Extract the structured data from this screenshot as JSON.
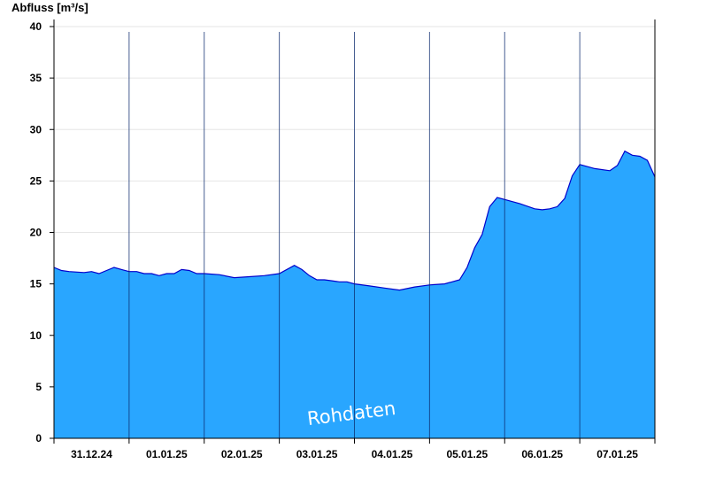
{
  "chart_data": {
    "type": "area",
    "ylabel": "Abfluss [m³/s]",
    "ylim": [
      0,
      40
    ],
    "yticks": [
      0,
      5,
      10,
      15,
      20,
      25,
      30,
      35,
      40
    ],
    "grid": true,
    "x_categories": [
      "31.12.24",
      "01.01.25",
      "02.01.25",
      "03.01.25",
      "04.01.25",
      "05.01.25",
      "06.01.25",
      "07.01.25"
    ],
    "x_range_days": [
      0,
      8
    ],
    "watermark": "Rohdaten",
    "colors": {
      "fill": "#29a6ff",
      "line": "#0000cc"
    },
    "series": [
      {
        "x": [
          0,
          0.1,
          0.2,
          0.4,
          0.5,
          0.6,
          0.7,
          0.8,
          0.9,
          1.0,
          1.1,
          1.2,
          1.3,
          1.4,
          1.5,
          1.6,
          1.7,
          1.8,
          1.9,
          2.0,
          2.2,
          2.4,
          2.6,
          2.8,
          3.0,
          3.2,
          3.3,
          3.4,
          3.5,
          3.6,
          3.7,
          3.8,
          3.9,
          4.0,
          4.2,
          4.4,
          4.6,
          4.8,
          5.0,
          5.2,
          5.4,
          5.5,
          5.6,
          5.7,
          5.8,
          5.9,
          6.0,
          6.2,
          6.4,
          6.5,
          6.6,
          6.7,
          6.8,
          6.9,
          7.0,
          7.2,
          7.4,
          7.5,
          7.6,
          7.7,
          7.8,
          7.9,
          8.0
        ],
        "y": [
          16.6,
          16.3,
          16.2,
          16.1,
          16.2,
          16.0,
          16.3,
          16.6,
          16.4,
          16.2,
          16.2,
          16.0,
          16.0,
          15.8,
          16.0,
          16.0,
          16.4,
          16.3,
          16.0,
          16.0,
          15.9,
          15.6,
          15.7,
          15.8,
          16.0,
          16.8,
          16.4,
          15.8,
          15.4,
          15.4,
          15.3,
          15.2,
          15.2,
          15.0,
          14.8,
          14.6,
          14.4,
          14.7,
          14.9,
          15.0,
          15.4,
          16.6,
          18.5,
          19.8,
          22.5,
          23.4,
          23.2,
          22.8,
          22.3,
          22.2,
          22.3,
          22.5,
          23.3,
          25.5,
          26.6,
          26.2,
          26.0,
          26.5,
          27.9,
          27.5,
          27.4,
          27.0,
          25.4
        ]
      }
    ]
  }
}
